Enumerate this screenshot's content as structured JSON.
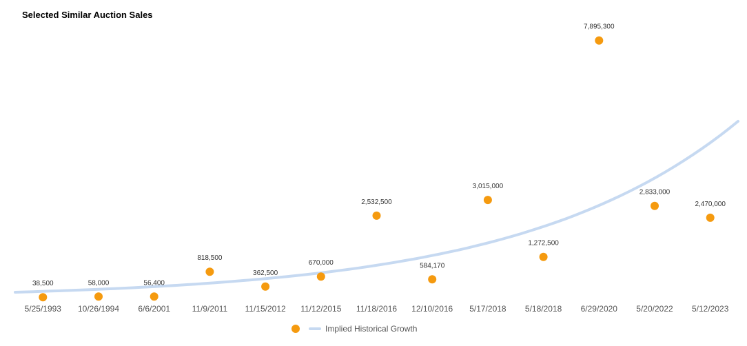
{
  "chart_data": {
    "type": "scatter",
    "title": "Selected Similar Auction Sales",
    "categories": [
      "5/25/1993",
      "10/26/1994",
      "6/6/2001",
      "11/9/2011",
      "11/15/2012",
      "11/12/2015",
      "11/18/2016",
      "12/10/2016",
      "5/17/2018",
      "5/18/2018",
      "6/29/2020",
      "5/20/2022",
      "5/12/2023"
    ],
    "series": [
      {
        "name": "",
        "color": "#F59A0F",
        "values": [
          38500,
          58000,
          56400,
          818500,
          362500,
          670000,
          2532500,
          584170,
          3015000,
          1272500,
          7895300,
          2833000,
          2470000
        ],
        "labels": [
          "38,500",
          "58,000",
          "56,400",
          "818,500",
          "362,500",
          "670,000",
          "2,532,500",
          "584,170",
          "3,015,000",
          "1,272,500",
          "7,895,300",
          "2,833,000",
          "2,470,000"
        ]
      }
    ],
    "trend": {
      "name": "Implied Historical Growth",
      "color": "#C6D9F1",
      "x_start_index": -0.5,
      "x_end_index": 12.5,
      "y_start": 190000,
      "y_end": 5420000
    },
    "ylim": [
      0,
      8500000
    ],
    "grid": false,
    "legend": "bottom-center"
  }
}
